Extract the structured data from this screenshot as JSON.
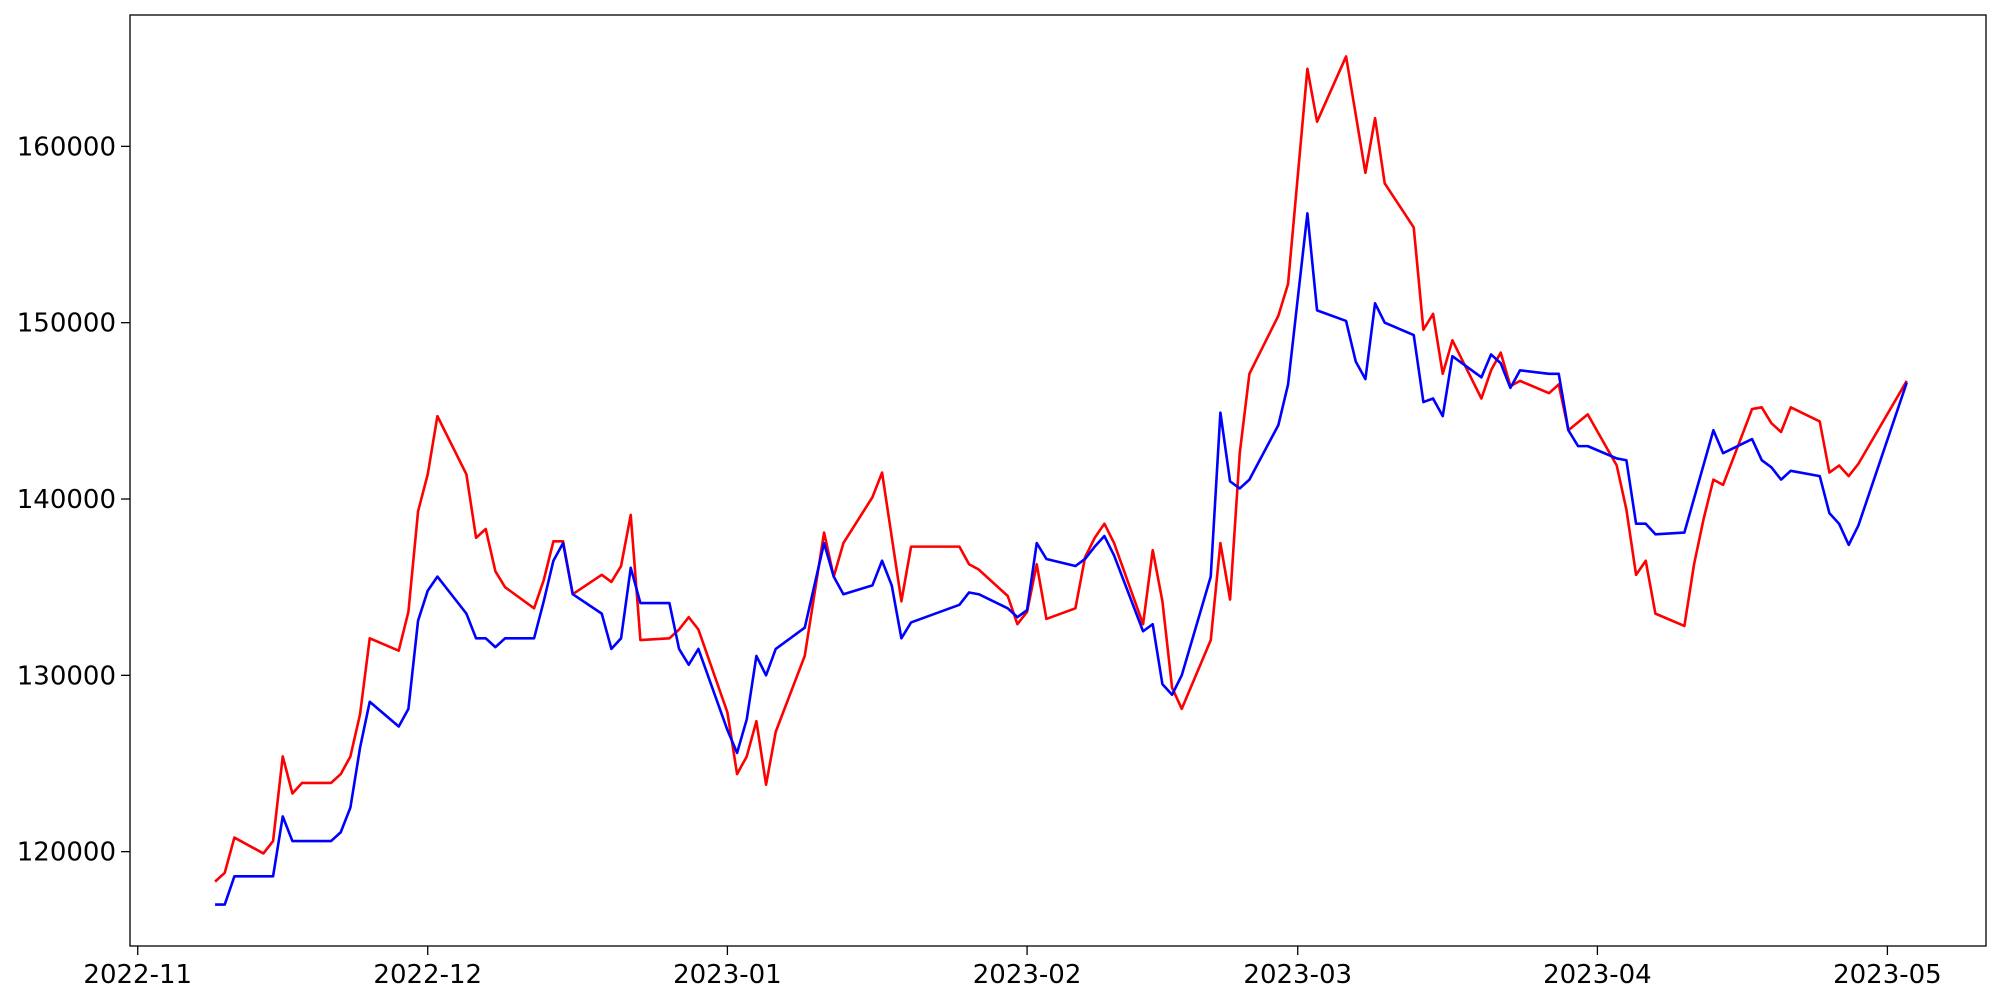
{
  "chart_data": {
    "type": "line",
    "xlim": [
      -0.8,
      191.2
    ],
    "xticks": [
      {
        "value": 0,
        "label": "2022-11"
      },
      {
        "value": 30,
        "label": "2022-12"
      },
      {
        "value": 61,
        "label": "2023-01"
      },
      {
        "value": 92,
        "label": "2023-02"
      },
      {
        "value": 120,
        "label": "2023-03"
      },
      {
        "value": 151,
        "label": "2023-04"
      },
      {
        "value": 181,
        "label": "2023-05"
      }
    ],
    "ylim": [
      114650,
      167450
    ],
    "yticks": [
      120000,
      130000,
      140000,
      150000,
      160000
    ],
    "grid": false,
    "series": [
      {
        "color": "#ff0000",
        "x": [
          8,
          9,
          10,
          13,
          14,
          15,
          16,
          17,
          20,
          21,
          22,
          23,
          24,
          27,
          28,
          29,
          30,
          31,
          34,
          35,
          36,
          37,
          38,
          41,
          42,
          43,
          44,
          45,
          48,
          49,
          50,
          51,
          52,
          55,
          56,
          57,
          58,
          61,
          62,
          63,
          64,
          65,
          66,
          69,
          71,
          72,
          73,
          76,
          77,
          79,
          80,
          85,
          86,
          87,
          90,
          91,
          92,
          93,
          94,
          97,
          98,
          99,
          100,
          101,
          104,
          105,
          106,
          107,
          108,
          111,
          112,
          113,
          114,
          115,
          118,
          119,
          121,
          122,
          125,
          127,
          128,
          129,
          132,
          133,
          134,
          135,
          136,
          139,
          140,
          141,
          142,
          143,
          146,
          147,
          148,
          150,
          153,
          154,
          155,
          156,
          157,
          160,
          161,
          162,
          163,
          164,
          167,
          168,
          169,
          170,
          171,
          174,
          175,
          176,
          177,
          178,
          183
        ],
        "values": [
          118300,
          118800,
          120800,
          119900,
          120600,
          125400,
          123300,
          123900,
          123900,
          124400,
          125400,
          127800,
          132100,
          131400,
          133600,
          139300,
          141400,
          144700,
          141400,
          137800,
          138300,
          135900,
          135000,
          133800,
          135400,
          137600,
          137600,
          134600,
          135700,
          135300,
          136200,
          139100,
          132000,
          132100,
          132600,
          133300,
          132600,
          127900,
          124400,
          125400,
          127400,
          123800,
          126800,
          131100,
          138100,
          135600,
          137500,
          140100,
          141500,
          134200,
          137300,
          137300,
          136300,
          136000,
          134500,
          132900,
          133600,
          136300,
          133200,
          133800,
          136700,
          137800,
          138600,
          137500,
          132900,
          137100,
          134200,
          129300,
          128100,
          132000,
          137500,
          134300,
          142600,
          147100,
          150400,
          152200,
          164400,
          161400,
          165100,
          158500,
          161600,
          157900,
          155400,
          149600,
          150500,
          147100,
          149000,
          145700,
          147300,
          148300,
          146400,
          146700,
          146000,
          146500,
          143900,
          144800,
          141900,
          139400,
          135700,
          136500,
          133500,
          132800,
          136300,
          138900,
          141100,
          140800,
          145100,
          145200,
          144300,
          143800,
          145200,
          144400,
          141500,
          141900,
          141300,
          142000,
          146700
        ]
      },
      {
        "color": "#0000ff",
        "x": [
          8,
          9,
          10,
          14,
          15,
          16,
          20,
          21,
          22,
          23,
          24,
          27,
          28,
          29,
          30,
          31,
          34,
          35,
          36,
          37,
          38,
          41,
          42,
          43,
          44,
          45,
          48,
          49,
          50,
          51,
          52,
          55,
          56,
          57,
          58,
          61,
          62,
          63,
          64,
          65,
          66,
          69,
          71,
          72,
          73,
          76,
          77,
          78,
          79,
          80,
          85,
          86,
          87,
          90,
          91,
          92,
          93,
          94,
          97,
          98,
          99,
          100,
          101,
          104,
          105,
          106,
          107,
          108,
          111,
          112,
          113,
          114,
          115,
          118,
          119,
          121,
          122,
          125,
          126,
          127,
          128,
          129,
          132,
          133,
          134,
          135,
          136,
          139,
          140,
          141,
          142,
          143,
          146,
          147,
          148,
          149,
          150,
          153,
          154,
          155,
          156,
          157,
          160,
          163,
          164,
          167,
          168,
          169,
          170,
          171,
          174,
          175,
          176,
          177,
          178,
          183
        ],
        "values": [
          117000,
          117000,
          118600,
          118600,
          122000,
          120600,
          120600,
          121100,
          122500,
          125900,
          128500,
          127100,
          128100,
          133100,
          134800,
          135600,
          133500,
          132100,
          132100,
          131600,
          132100,
          132100,
          134200,
          136500,
          137500,
          134600,
          133500,
          131500,
          132100,
          136100,
          134100,
          134100,
          131500,
          130600,
          131500,
          126900,
          125600,
          127500,
          131100,
          130000,
          131500,
          132700,
          137500,
          135600,
          134600,
          135100,
          136500,
          135100,
          132100,
          133000,
          134000,
          134700,
          134600,
          133800,
          133300,
          133700,
          137500,
          136600,
          136200,
          136600,
          137300,
          137900,
          136800,
          132500,
          132900,
          129500,
          128900,
          130000,
          135600,
          144900,
          141000,
          140600,
          141100,
          144200,
          146500,
          156200,
          150700,
          150100,
          147800,
          146800,
          151100,
          150000,
          149300,
          145500,
          145700,
          144700,
          148100,
          146900,
          148200,
          147700,
          146300,
          147300,
          147100,
          147100,
          143900,
          143000,
          143000,
          142300,
          142200,
          138600,
          138600,
          138000,
          138100,
          143900,
          142600,
          143400,
          142200,
          141800,
          141100,
          141600,
          141300,
          139200,
          138600,
          137400,
          138500,
          146600
        ]
      }
    ]
  }
}
